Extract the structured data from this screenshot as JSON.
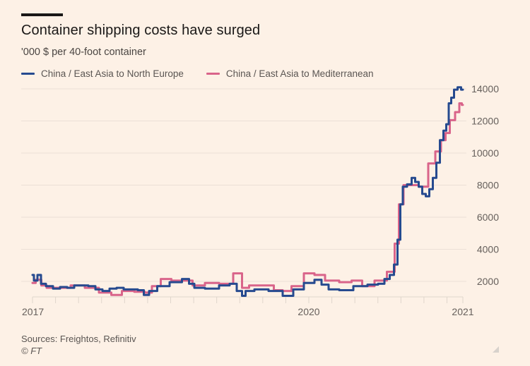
{
  "header": {
    "title": "Container shipping costs have surged",
    "subtitle": "'000 $ per 40-foot container"
  },
  "legend": [
    {
      "label": "China / East Asia to North Europe",
      "color": "#264a8f"
    },
    {
      "label": "China / East Asia to Mediterranean",
      "color": "#d9648a"
    }
  ],
  "footer": {
    "sources": "Sources: Freightos, Refinitiv",
    "copyright": "© FT"
  },
  "chart_data": {
    "type": "line",
    "title": "Container shipping costs have surged",
    "subtitle": "'000 $ per 40-foot container",
    "xlabel": "",
    "ylabel": "",
    "ylim": [
      1000,
      14500
    ],
    "yticks": [
      2000,
      4000,
      6000,
      8000,
      10000,
      12000,
      14000
    ],
    "grid": true,
    "legend_position": "top-left",
    "x_range": [
      0,
      609
    ],
    "x_ticks": [
      {
        "label": "2017",
        "x": 0
      },
      {
        "label": "2020",
        "x": 391
      },
      {
        "label": "2021",
        "x": 609
      }
    ],
    "series": [
      {
        "name": "China / East Asia to North Europe",
        "color": "#264a8f",
        "points": [
          [
            0,
            2400
          ],
          [
            4,
            2050
          ],
          [
            10,
            2400
          ],
          [
            14,
            1850
          ],
          [
            24,
            1700
          ],
          [
            34,
            1550
          ],
          [
            44,
            1650
          ],
          [
            54,
            1600
          ],
          [
            64,
            1750
          ],
          [
            74,
            1750
          ],
          [
            84,
            1700
          ],
          [
            94,
            1500
          ],
          [
            104,
            1400
          ],
          [
            114,
            1550
          ],
          [
            124,
            1600
          ],
          [
            134,
            1500
          ],
          [
            144,
            1500
          ],
          [
            154,
            1450
          ],
          [
            161,
            1150
          ],
          [
            169,
            1400
          ],
          [
            184,
            1700
          ],
          [
            204,
            1950
          ],
          [
            219,
            2150
          ],
          [
            224,
            1850
          ],
          [
            234,
            1600
          ],
          [
            254,
            1550
          ],
          [
            274,
            1750
          ],
          [
            284,
            1850
          ],
          [
            294,
            1400
          ],
          [
            299,
            1100
          ],
          [
            304,
            1400
          ],
          [
            324,
            1500
          ],
          [
            344,
            1400
          ],
          [
            364,
            1100
          ],
          [
            374,
            1500
          ],
          [
            394,
            1900
          ],
          [
            404,
            2100
          ],
          [
            414,
            1800
          ],
          [
            424,
            1500
          ],
          [
            444,
            1450
          ],
          [
            464,
            1700
          ],
          [
            484,
            1800
          ],
          [
            494,
            1850
          ],
          [
            502,
            2150
          ],
          [
            509,
            2400
          ],
          [
            514,
            3050
          ],
          [
            519,
            4600
          ],
          [
            522,
            6800
          ],
          [
            526,
            7900
          ],
          [
            534,
            8050
          ],
          [
            539,
            8450
          ],
          [
            544,
            8200
          ],
          [
            549,
            7900
          ],
          [
            554,
            7450
          ],
          [
            559,
            7300
          ],
          [
            564,
            7750
          ],
          [
            569,
            8450
          ],
          [
            574,
            9400
          ],
          [
            579,
            10800
          ],
          [
            584,
            11400
          ],
          [
            587,
            11800
          ],
          [
            591,
            13100
          ],
          [
            594,
            13450
          ],
          [
            599,
            13950
          ],
          [
            604,
            14100
          ],
          [
            609,
            13950
          ]
        ]
      },
      {
        "name": "China / East Asia to Mediterranean",
        "color": "#d9648a",
        "points": [
          [
            0,
            1900
          ],
          [
            9,
            2100
          ],
          [
            16,
            1750
          ],
          [
            24,
            1600
          ],
          [
            44,
            1600
          ],
          [
            64,
            1750
          ],
          [
            84,
            1600
          ],
          [
            104,
            1300
          ],
          [
            119,
            1150
          ],
          [
            134,
            1400
          ],
          [
            154,
            1350
          ],
          [
            164,
            1300
          ],
          [
            174,
            1700
          ],
          [
            189,
            2150
          ],
          [
            204,
            2050
          ],
          [
            219,
            2050
          ],
          [
            234,
            1750
          ],
          [
            254,
            1900
          ],
          [
            274,
            1850
          ],
          [
            294,
            2500
          ],
          [
            299,
            1600
          ],
          [
            314,
            1750
          ],
          [
            334,
            1750
          ],
          [
            349,
            1450
          ],
          [
            359,
            1400
          ],
          [
            374,
            1700
          ],
          [
            394,
            2500
          ],
          [
            404,
            2400
          ],
          [
            424,
            2050
          ],
          [
            444,
            1950
          ],
          [
            459,
            2050
          ],
          [
            474,
            1700
          ],
          [
            494,
            2050
          ],
          [
            509,
            2600
          ],
          [
            516,
            4350
          ],
          [
            521,
            6800
          ],
          [
            529,
            8000
          ],
          [
            539,
            8000
          ],
          [
            554,
            7900
          ],
          [
            566,
            9350
          ],
          [
            574,
            10100
          ],
          [
            582,
            10800
          ],
          [
            587,
            11250
          ],
          [
            594,
            12050
          ],
          [
            602,
            12550
          ],
          [
            606,
            13100
          ],
          [
            609,
            13000
          ]
        ]
      }
    ]
  }
}
